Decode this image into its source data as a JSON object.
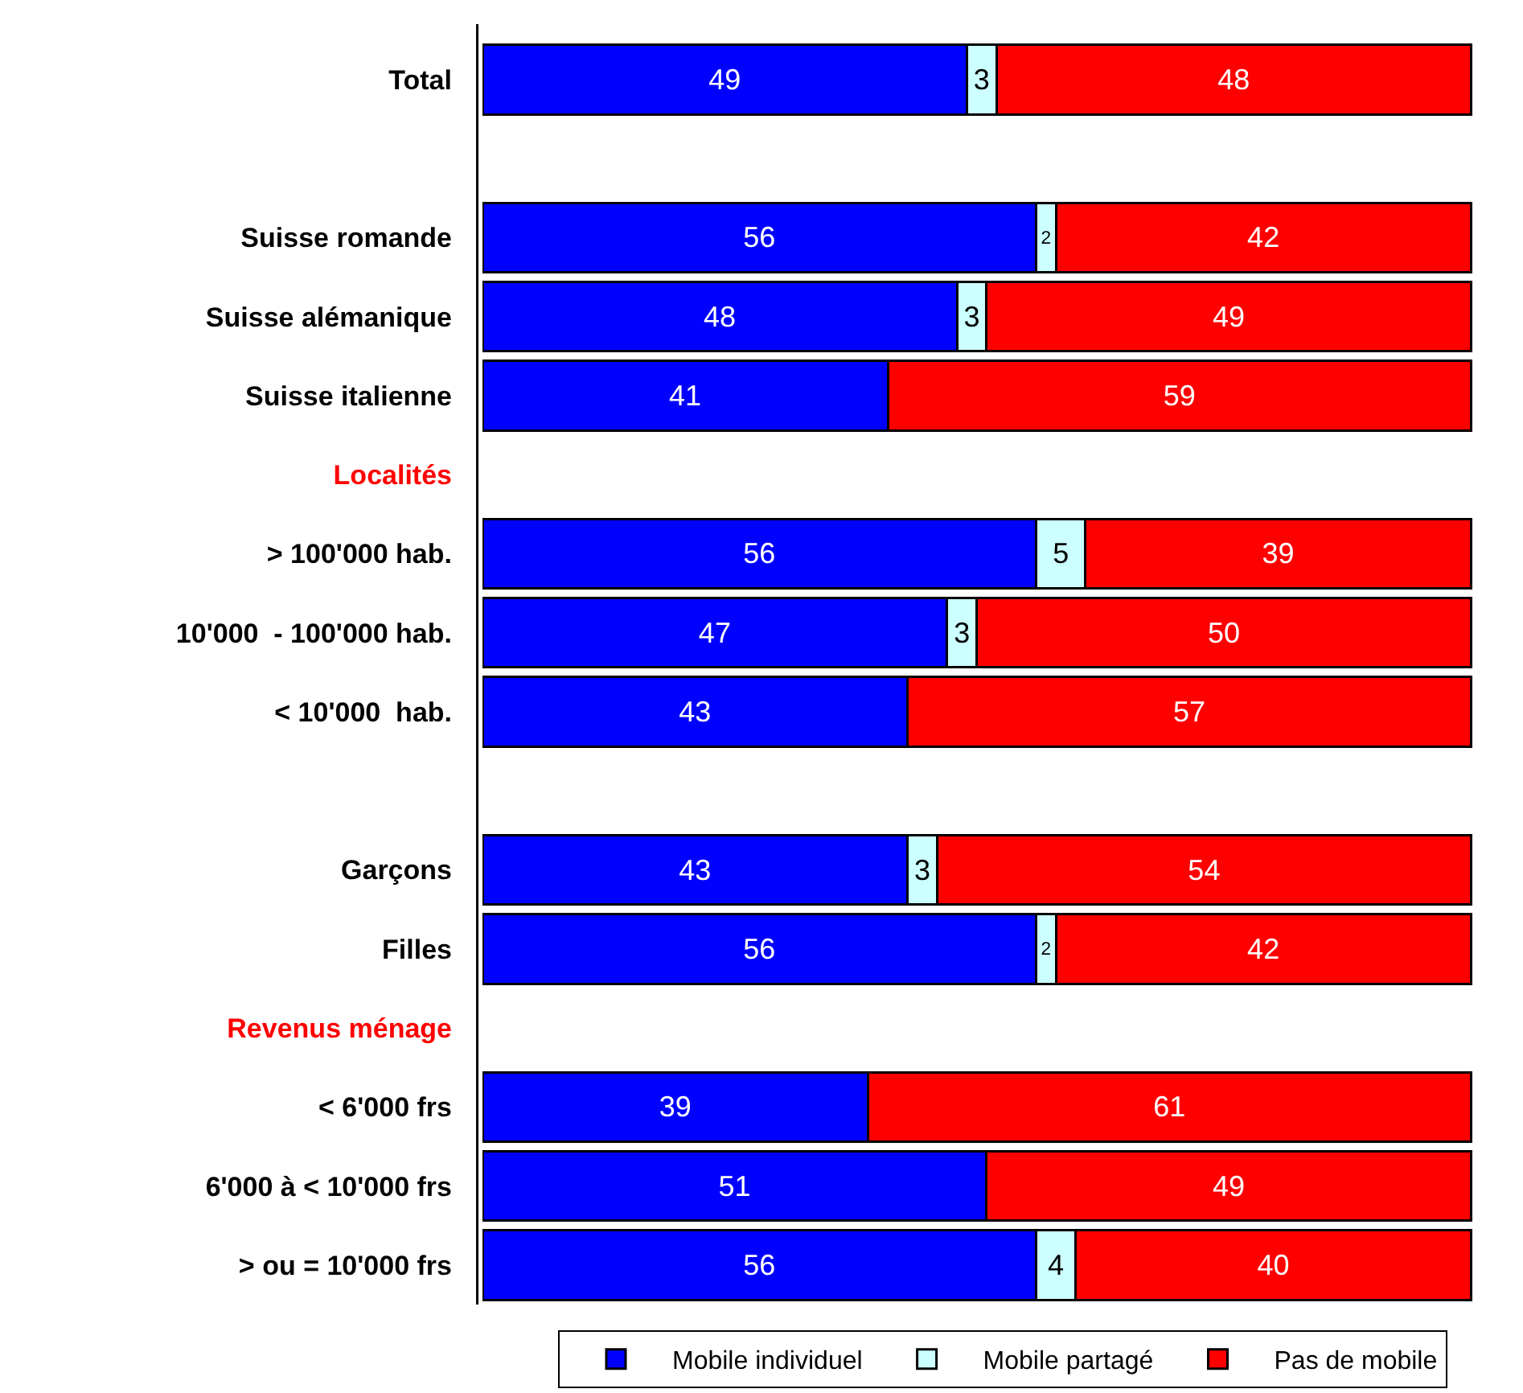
{
  "chart_data": {
    "type": "bar",
    "orientation": "horizontal",
    "stacked": true,
    "data_labels": true,
    "legend": "bottom",
    "categories": [
      "Total",
      null,
      "Suisse romande",
      "Suisse alémanique",
      "Suisse italienne",
      "Localités",
      "> 100'000 hab.",
      "10'000  - 100'000 hab.",
      "< 10'000  hab.",
      null,
      "Garçons",
      "Filles",
      "Revenus ménage",
      "< 6'000 frs",
      "6'000 à < 10'000 frs",
      "> ou = 10'000 frs"
    ],
    "series": [
      {
        "name": "Mobile individuel",
        "color": "#0000ff",
        "values": [
          49,
          null,
          56,
          48,
          41,
          null,
          56,
          47,
          43,
          null,
          43,
          56,
          null,
          39,
          51,
          56
        ]
      },
      {
        "name": "Mobile partagé",
        "color": "#ccffff",
        "values": [
          3,
          null,
          2,
          3,
          null,
          null,
          5,
          3,
          null,
          null,
          3,
          2,
          null,
          null,
          null,
          4
        ]
      },
      {
        "name": "Pas de mobile",
        "color": "#ff0000",
        "values": [
          48,
          null,
          42,
          49,
          59,
          null,
          39,
          50,
          57,
          null,
          54,
          42,
          null,
          61,
          49,
          40
        ]
      }
    ]
  }
}
